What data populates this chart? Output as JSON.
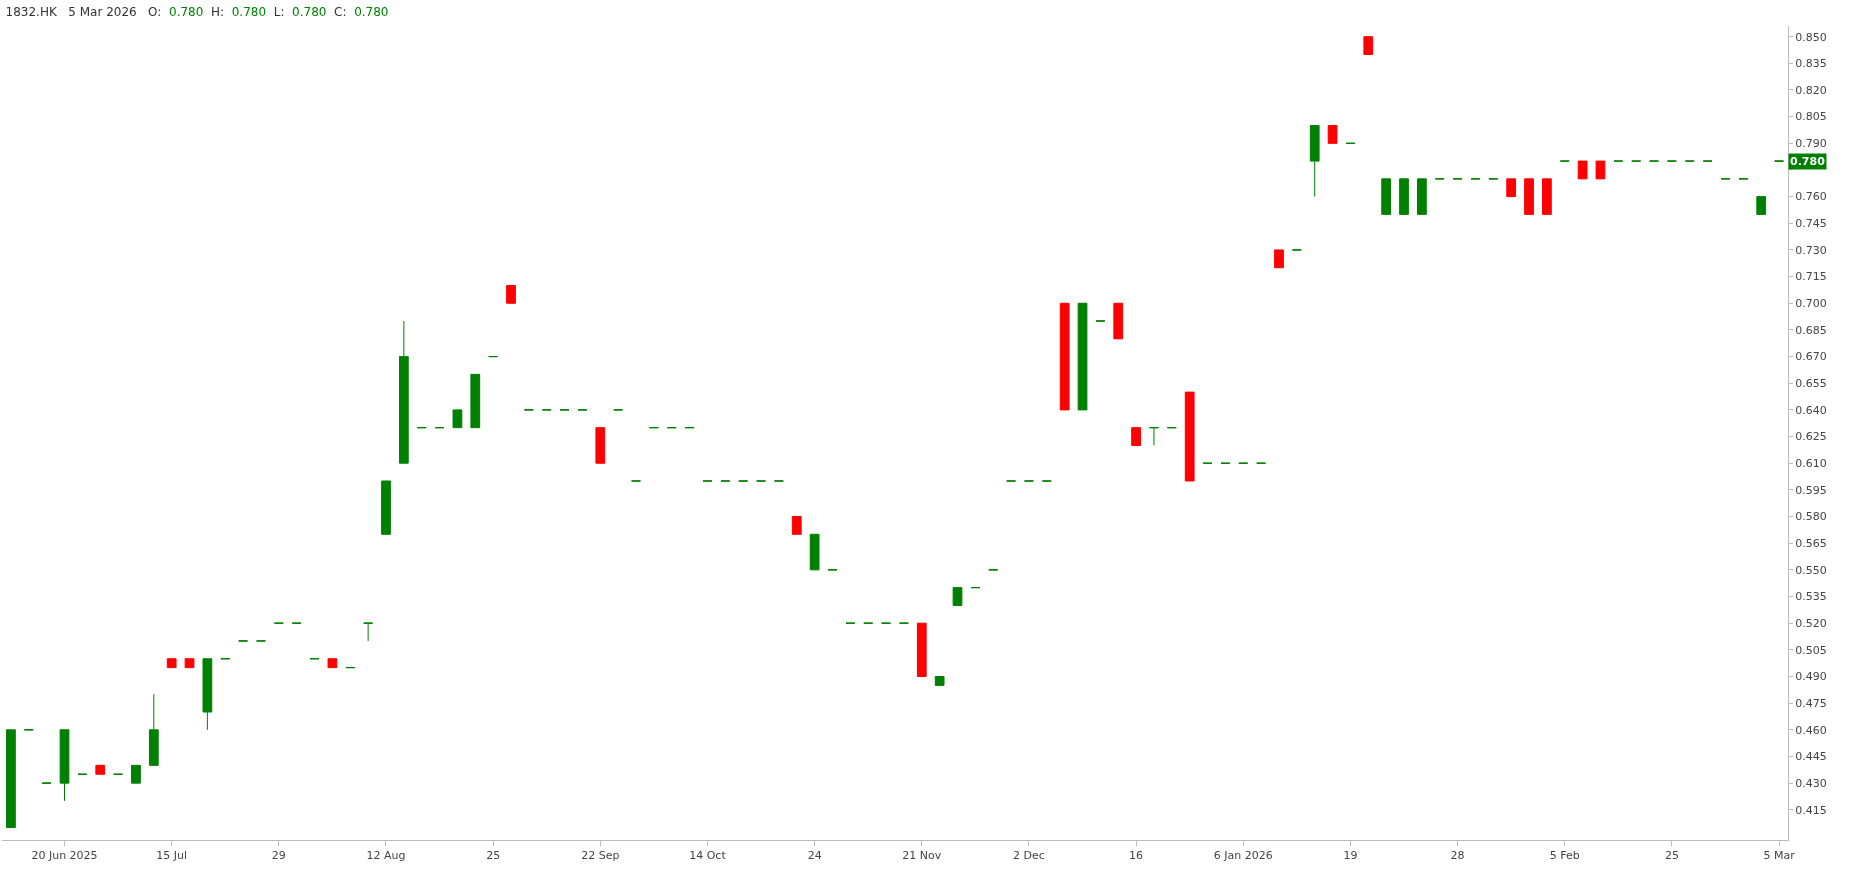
{
  "chart_data": {
    "type": "candlestick",
    "title": "1832.HK",
    "subtitle": "5 Mar 2026",
    "annotations": [
      "O:",
      "0.780",
      "H:",
      "0.780",
      "L:",
      "0.780",
      "C:",
      "0.780",
      {
        "text": "0.780",
        "y": 0.78
      }
    ],
    "categories": [
      null,
      null,
      null,
      "20 Jun 2025",
      null,
      null,
      null,
      null,
      null,
      "15 Jul",
      null,
      null,
      null,
      null,
      null,
      "29",
      null,
      null,
      null,
      null,
      null,
      "12 Aug",
      null,
      null,
      null,
      null,
      null,
      "25",
      null,
      null,
      null,
      null,
      null,
      "22 Sep",
      null,
      null,
      null,
      null,
      null,
      "14 Oct",
      null,
      null,
      null,
      null,
      null,
      "24",
      null,
      null,
      null,
      null,
      null,
      "21 Nov",
      null,
      null,
      null,
      null,
      null,
      "2 Dec",
      null,
      null,
      null,
      null,
      null,
      "16",
      null,
      null,
      null,
      null,
      null,
      "6 Jan 2026",
      null,
      null,
      null,
      null,
      null,
      "19",
      null,
      null,
      null,
      null,
      null,
      "28",
      null,
      null,
      null,
      null,
      null,
      "5 Feb",
      null,
      null,
      null,
      null,
      null,
      "25",
      null,
      null,
      null,
      null,
      null,
      "5 Mar"
    ],
    "ohlc": [
      [
        0.405,
        0.46,
        0.405,
        0.46
      ],
      [
        0.46,
        0.46,
        0.46,
        0.46
      ],
      [
        0.43,
        0.43,
        0.43,
        0.43
      ],
      [
        0.43,
        0.46,
        0.42,
        0.46
      ],
      [
        0.435,
        0.435,
        0.435,
        0.435
      ],
      [
        0.44,
        0.44,
        0.435,
        0.435
      ],
      [
        0.435,
        0.435,
        0.435,
        0.435
      ],
      [
        0.43,
        0.44,
        0.43,
        0.44
      ],
      [
        0.44,
        0.48,
        0.44,
        0.46
      ],
      [
        0.5,
        0.5,
        0.495,
        0.495
      ],
      [
        0.5,
        0.5,
        0.495,
        0.495
      ],
      [
        0.47,
        0.5,
        0.46,
        0.5
      ],
      [
        0.5,
        0.5,
        0.5,
        0.5
      ],
      [
        0.51,
        0.51,
        0.51,
        0.51
      ],
      [
        0.51,
        0.51,
        0.51,
        0.51
      ],
      [
        0.52,
        0.52,
        0.52,
        0.52
      ],
      [
        0.52,
        0.52,
        0.52,
        0.52
      ],
      [
        0.5,
        0.5,
        0.5,
        0.5
      ],
      [
        0.5,
        0.5,
        0.495,
        0.495
      ],
      [
        0.495,
        0.495,
        0.495,
        0.495
      ],
      [
        0.52,
        0.52,
        0.51,
        0.52
      ],
      [
        0.57,
        0.6,
        0.57,
        0.6
      ],
      [
        0.61,
        0.69,
        0.61,
        0.67
      ],
      [
        0.63,
        0.63,
        0.63,
        0.63
      ],
      [
        0.63,
        0.63,
        0.63,
        0.63
      ],
      [
        0.63,
        0.64,
        0.63,
        0.64
      ],
      [
        0.63,
        0.66,
        0.63,
        0.66
      ],
      [
        0.67,
        0.67,
        0.67,
        0.67
      ],
      [
        0.71,
        0.71,
        0.7,
        0.7
      ],
      [
        0.64,
        0.64,
        0.64,
        0.64
      ],
      [
        0.64,
        0.64,
        0.64,
        0.64
      ],
      [
        0.64,
        0.64,
        0.64,
        0.64
      ],
      [
        0.64,
        0.64,
        0.64,
        0.64
      ],
      [
        0.63,
        0.63,
        0.61,
        0.61
      ],
      [
        0.64,
        0.64,
        0.64,
        0.64
      ],
      [
        0.6,
        0.6,
        0.6,
        0.6
      ],
      [
        0.63,
        0.63,
        0.63,
        0.63
      ],
      [
        0.63,
        0.63,
        0.63,
        0.63
      ],
      [
        0.63,
        0.63,
        0.63,
        0.63
      ],
      [
        0.6,
        0.6,
        0.6,
        0.6
      ],
      [
        0.6,
        0.6,
        0.6,
        0.6
      ],
      [
        0.6,
        0.6,
        0.6,
        0.6
      ],
      [
        0.6,
        0.6,
        0.6,
        0.6
      ],
      [
        0.6,
        0.6,
        0.6,
        0.6
      ],
      [
        0.58,
        0.58,
        0.57,
        0.57
      ],
      [
        0.55,
        0.57,
        0.55,
        0.57
      ],
      [
        0.55,
        0.55,
        0.55,
        0.55
      ],
      [
        0.52,
        0.52,
        0.52,
        0.52
      ],
      [
        0.52,
        0.52,
        0.52,
        0.52
      ],
      [
        0.52,
        0.52,
        0.52,
        0.52
      ],
      [
        0.52,
        0.52,
        0.52,
        0.52
      ],
      [
        0.52,
        0.52,
        0.49,
        0.49
      ],
      [
        0.485,
        0.49,
        0.485,
        0.49
      ],
      [
        0.53,
        0.54,
        0.53,
        0.54
      ],
      [
        0.54,
        0.54,
        0.54,
        0.54
      ],
      [
        0.55,
        0.55,
        0.55,
        0.55
      ],
      [
        0.6,
        0.6,
        0.6,
        0.6
      ],
      [
        0.6,
        0.6,
        0.6,
        0.6
      ],
      [
        0.6,
        0.6,
        0.6,
        0.6
      ],
      [
        0.7,
        0.7,
        0.64,
        0.64
      ],
      [
        0.64,
        0.7,
        0.64,
        0.7
      ],
      [
        0.69,
        0.69,
        0.69,
        0.69
      ],
      [
        0.7,
        0.7,
        0.68,
        0.68
      ],
      [
        0.63,
        0.63,
        0.62,
        0.62
      ],
      [
        0.63,
        0.63,
        0.62,
        0.63
      ],
      [
        0.63,
        0.63,
        0.63,
        0.63
      ],
      [
        0.65,
        0.65,
        0.6,
        0.6
      ],
      [
        0.61,
        0.61,
        0.61,
        0.61
      ],
      [
        0.61,
        0.61,
        0.61,
        0.61
      ],
      [
        0.61,
        0.61,
        0.61,
        0.61
      ],
      [
        0.61,
        0.61,
        0.61,
        0.61
      ],
      [
        0.73,
        0.73,
        0.72,
        0.72
      ],
      [
        0.73,
        0.73,
        0.73,
        0.73
      ],
      [
        0.78,
        0.8,
        0.76,
        0.8
      ],
      [
        0.8,
        0.8,
        0.79,
        0.79
      ],
      [
        0.79,
        0.79,
        0.79,
        0.79
      ],
      [
        0.85,
        0.85,
        0.84,
        0.84
      ],
      [
        0.75,
        0.77,
        0.75,
        0.77
      ],
      [
        0.75,
        0.77,
        0.75,
        0.77
      ],
      [
        0.75,
        0.77,
        0.75,
        0.77
      ],
      [
        0.77,
        0.77,
        0.77,
        0.77
      ],
      [
        0.77,
        0.77,
        0.77,
        0.77
      ],
      [
        0.77,
        0.77,
        0.77,
        0.77
      ],
      [
        0.77,
        0.77,
        0.77,
        0.77
      ],
      [
        0.77,
        0.77,
        0.76,
        0.76
      ],
      [
        0.77,
        0.77,
        0.75,
        0.75
      ],
      [
        0.77,
        0.77,
        0.75,
        0.75
      ],
      [
        0.78,
        0.78,
        0.78,
        0.78
      ],
      [
        0.78,
        0.78,
        0.77,
        0.77
      ],
      [
        0.78,
        0.78,
        0.77,
        0.77
      ],
      [
        0.78,
        0.78,
        0.78,
        0.78
      ],
      [
        0.78,
        0.78,
        0.78,
        0.78
      ],
      [
        0.78,
        0.78,
        0.78,
        0.78
      ],
      [
        0.78,
        0.78,
        0.78,
        0.78
      ],
      [
        0.78,
        0.78,
        0.78,
        0.78
      ],
      [
        0.78,
        0.78,
        0.78,
        0.78
      ],
      [
        0.77,
        0.77,
        0.77,
        0.77
      ],
      [
        0.77,
        0.77,
        0.77,
        0.77
      ],
      [
        0.75,
        0.76,
        0.75,
        0.76
      ],
      [
        0.78,
        0.78,
        0.78,
        0.78
      ]
    ],
    "colors": [
      "#008000",
      "#008000",
      "#008000",
      "#008000",
      "#008000",
      "#ff0000",
      "#008000",
      "#008000",
      "#008000",
      "#ff0000",
      "#ff0000",
      "#008000",
      "#008000",
      "#008000",
      "#008000",
      "#008000",
      "#008000",
      "#008000",
      "#ff0000",
      "#008000",
      "#008000",
      "#008000",
      "#008000",
      "#008000",
      "#008000",
      "#008000",
      "#008000",
      "#008000",
      "#ff0000",
      "#008000",
      "#008000",
      "#008000",
      "#008000",
      "#ff0000",
      "#008000",
      "#008000",
      "#008000",
      "#008000",
      "#008000",
      "#008000",
      "#008000",
      "#008000",
      "#008000",
      "#008000",
      "#ff0000",
      "#008000",
      "#008000",
      "#008000",
      "#008000",
      "#008000",
      "#008000",
      "#ff0000",
      "#008000",
      "#008000",
      "#008000",
      "#008000",
      "#008000",
      "#008000",
      "#008000",
      "#ff0000",
      "#008000",
      "#008000",
      "#ff0000",
      "#ff0000",
      "#008000",
      "#008000",
      "#ff0000",
      "#008000",
      "#008000",
      "#008000",
      "#008000",
      "#ff0000",
      "#008000",
      "#008000",
      "#ff0000",
      "#008000",
      "#ff0000",
      "#008000",
      "#008000",
      "#008000",
      "#008000",
      "#008000",
      "#008000",
      "#008000",
      "#ff0000",
      "#ff0000",
      "#ff0000",
      "#008000",
      "#ff0000",
      "#ff0000",
      "#008000",
      "#008000",
      "#008000",
      "#008000",
      "#008000",
      "#008000",
      "#008000",
      "#008000",
      "#008000",
      "#008000"
    ],
    "ylim": [
      0.398,
      0.856
    ],
    "yticks": [
      {
        "value": 0.415,
        "label": "0.415"
      },
      {
        "value": 0.43,
        "label": "0.430"
      },
      {
        "value": 0.445,
        "label": "0.445"
      },
      {
        "value": 0.46,
        "label": "0.460"
      },
      {
        "value": 0.475,
        "label": "0.475"
      },
      {
        "value": 0.49,
        "label": "0.490"
      },
      {
        "value": 0.505,
        "label": "0.505"
      },
      {
        "value": 0.52,
        "label": "0.520"
      },
      {
        "value": 0.535,
        "label": "0.535"
      },
      {
        "value": 0.55,
        "label": "0.550"
      },
      {
        "value": 0.565,
        "label": "0.565"
      },
      {
        "value": 0.58,
        "label": "0.580"
      },
      {
        "value": 0.595,
        "label": "0.595"
      },
      {
        "value": 0.61,
        "label": "0.610"
      },
      {
        "value": 0.625,
        "label": "0.625"
      },
      {
        "value": 0.64,
        "label": "0.640"
      },
      {
        "value": 0.655,
        "label": "0.655"
      },
      {
        "value": 0.67,
        "label": "0.670"
      },
      {
        "value": 0.685,
        "label": "0.685"
      },
      {
        "value": 0.7,
        "label": "0.700"
      },
      {
        "value": 0.715,
        "label": "0.715"
      },
      {
        "value": 0.73,
        "label": "0.730"
      },
      {
        "value": 0.745,
        "label": "0.745"
      },
      {
        "value": 0.76,
        "label": "0.760"
      },
      {
        "value": 0.775,
        "label": null
      },
      {
        "value": 0.79,
        "label": "0.790"
      },
      {
        "value": 0.805,
        "label": "0.805"
      },
      {
        "value": 0.82,
        "label": "0.820"
      },
      {
        "value": 0.835,
        "label": "0.835"
      },
      {
        "value": 0.85,
        "label": "0.850"
      }
    ]
  }
}
